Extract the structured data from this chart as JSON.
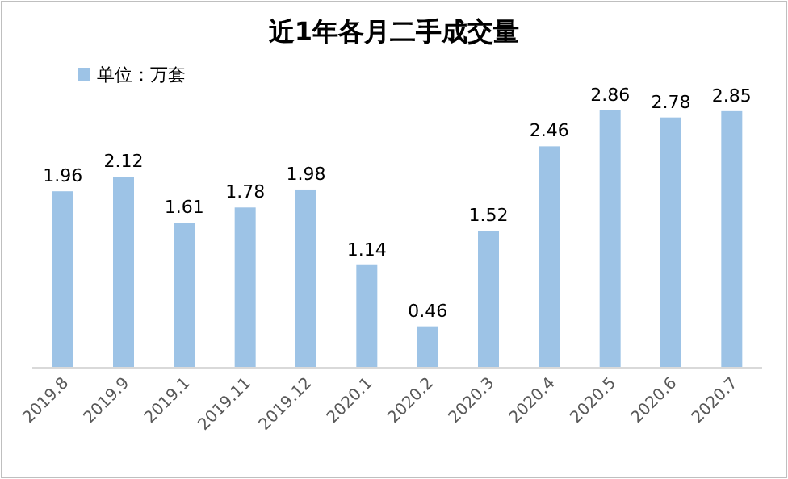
{
  "chart_data": {
    "type": "bar",
    "title": "近1年各月二手成交量",
    "categories": [
      "2019.8",
      "2019.9",
      "2019.1",
      "2019.11",
      "2019.12",
      "2020.1",
      "2020.2",
      "2020.3",
      "2020.4",
      "2020.5",
      "2020.6",
      "2020.7"
    ],
    "series": [
      {
        "name": "单位：万套",
        "color": "#9dc3e6",
        "values": [
          1.96,
          2.12,
          1.61,
          1.78,
          1.98,
          1.14,
          0.46,
          1.52,
          2.46,
          2.86,
          2.78,
          2.85
        ]
      }
    ],
    "data_labels": true,
    "legend": "top left"
  }
}
